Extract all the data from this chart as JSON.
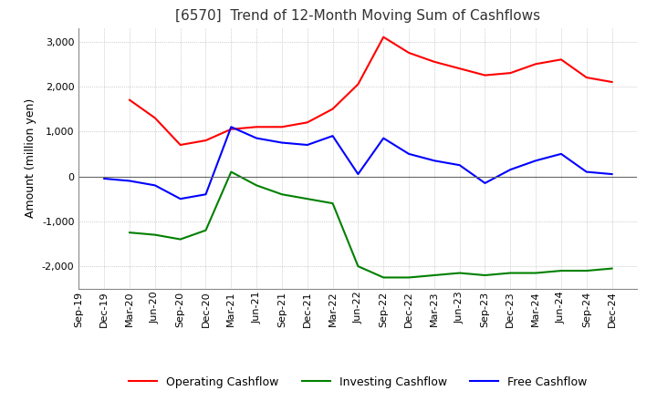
{
  "title": "[6570]  Trend of 12-Month Moving Sum of Cashflows",
  "ylabel": "Amount (million yen)",
  "xlabels": [
    "Sep-19",
    "Dec-19",
    "Mar-20",
    "Jun-20",
    "Sep-20",
    "Dec-20",
    "Mar-21",
    "Jun-21",
    "Sep-21",
    "Dec-21",
    "Mar-22",
    "Jun-22",
    "Sep-22",
    "Dec-22",
    "Mar-23",
    "Jun-23",
    "Sep-23",
    "Dec-23",
    "Mar-24",
    "Jun-24",
    "Sep-24",
    "Dec-24"
  ],
  "ylim": [
    -2500,
    3300
  ],
  "yticks": [
    -2000,
    -1000,
    0,
    1000,
    2000,
    3000
  ],
  "operating": [
    null,
    null,
    1700,
    1300,
    700,
    800,
    1050,
    1100,
    1100,
    1200,
    1500,
    2050,
    3100,
    2750,
    2550,
    2400,
    2250,
    2300,
    2500,
    2600,
    2200,
    2100
  ],
  "investing": [
    null,
    null,
    -1250,
    -1300,
    -1400,
    -1200,
    100,
    -200,
    -400,
    -500,
    -600,
    -2000,
    -2250,
    -2250,
    -2200,
    -2150,
    -2200,
    -2150,
    -2150,
    -2100,
    -2100,
    -2050
  ],
  "free": [
    null,
    -50,
    -100,
    -200,
    -500,
    -400,
    1100,
    850,
    750,
    700,
    900,
    50,
    850,
    500,
    350,
    250,
    -150,
    150,
    350,
    500,
    100,
    50
  ],
  "operating_color": "#ff0000",
  "investing_color": "#008000",
  "free_color": "#0000ff",
  "grid_color": "#aaaaaa",
  "background_color": "#ffffff",
  "title_fontsize": 11,
  "axis_fontsize": 9,
  "tick_fontsize": 8,
  "legend_fontsize": 9
}
